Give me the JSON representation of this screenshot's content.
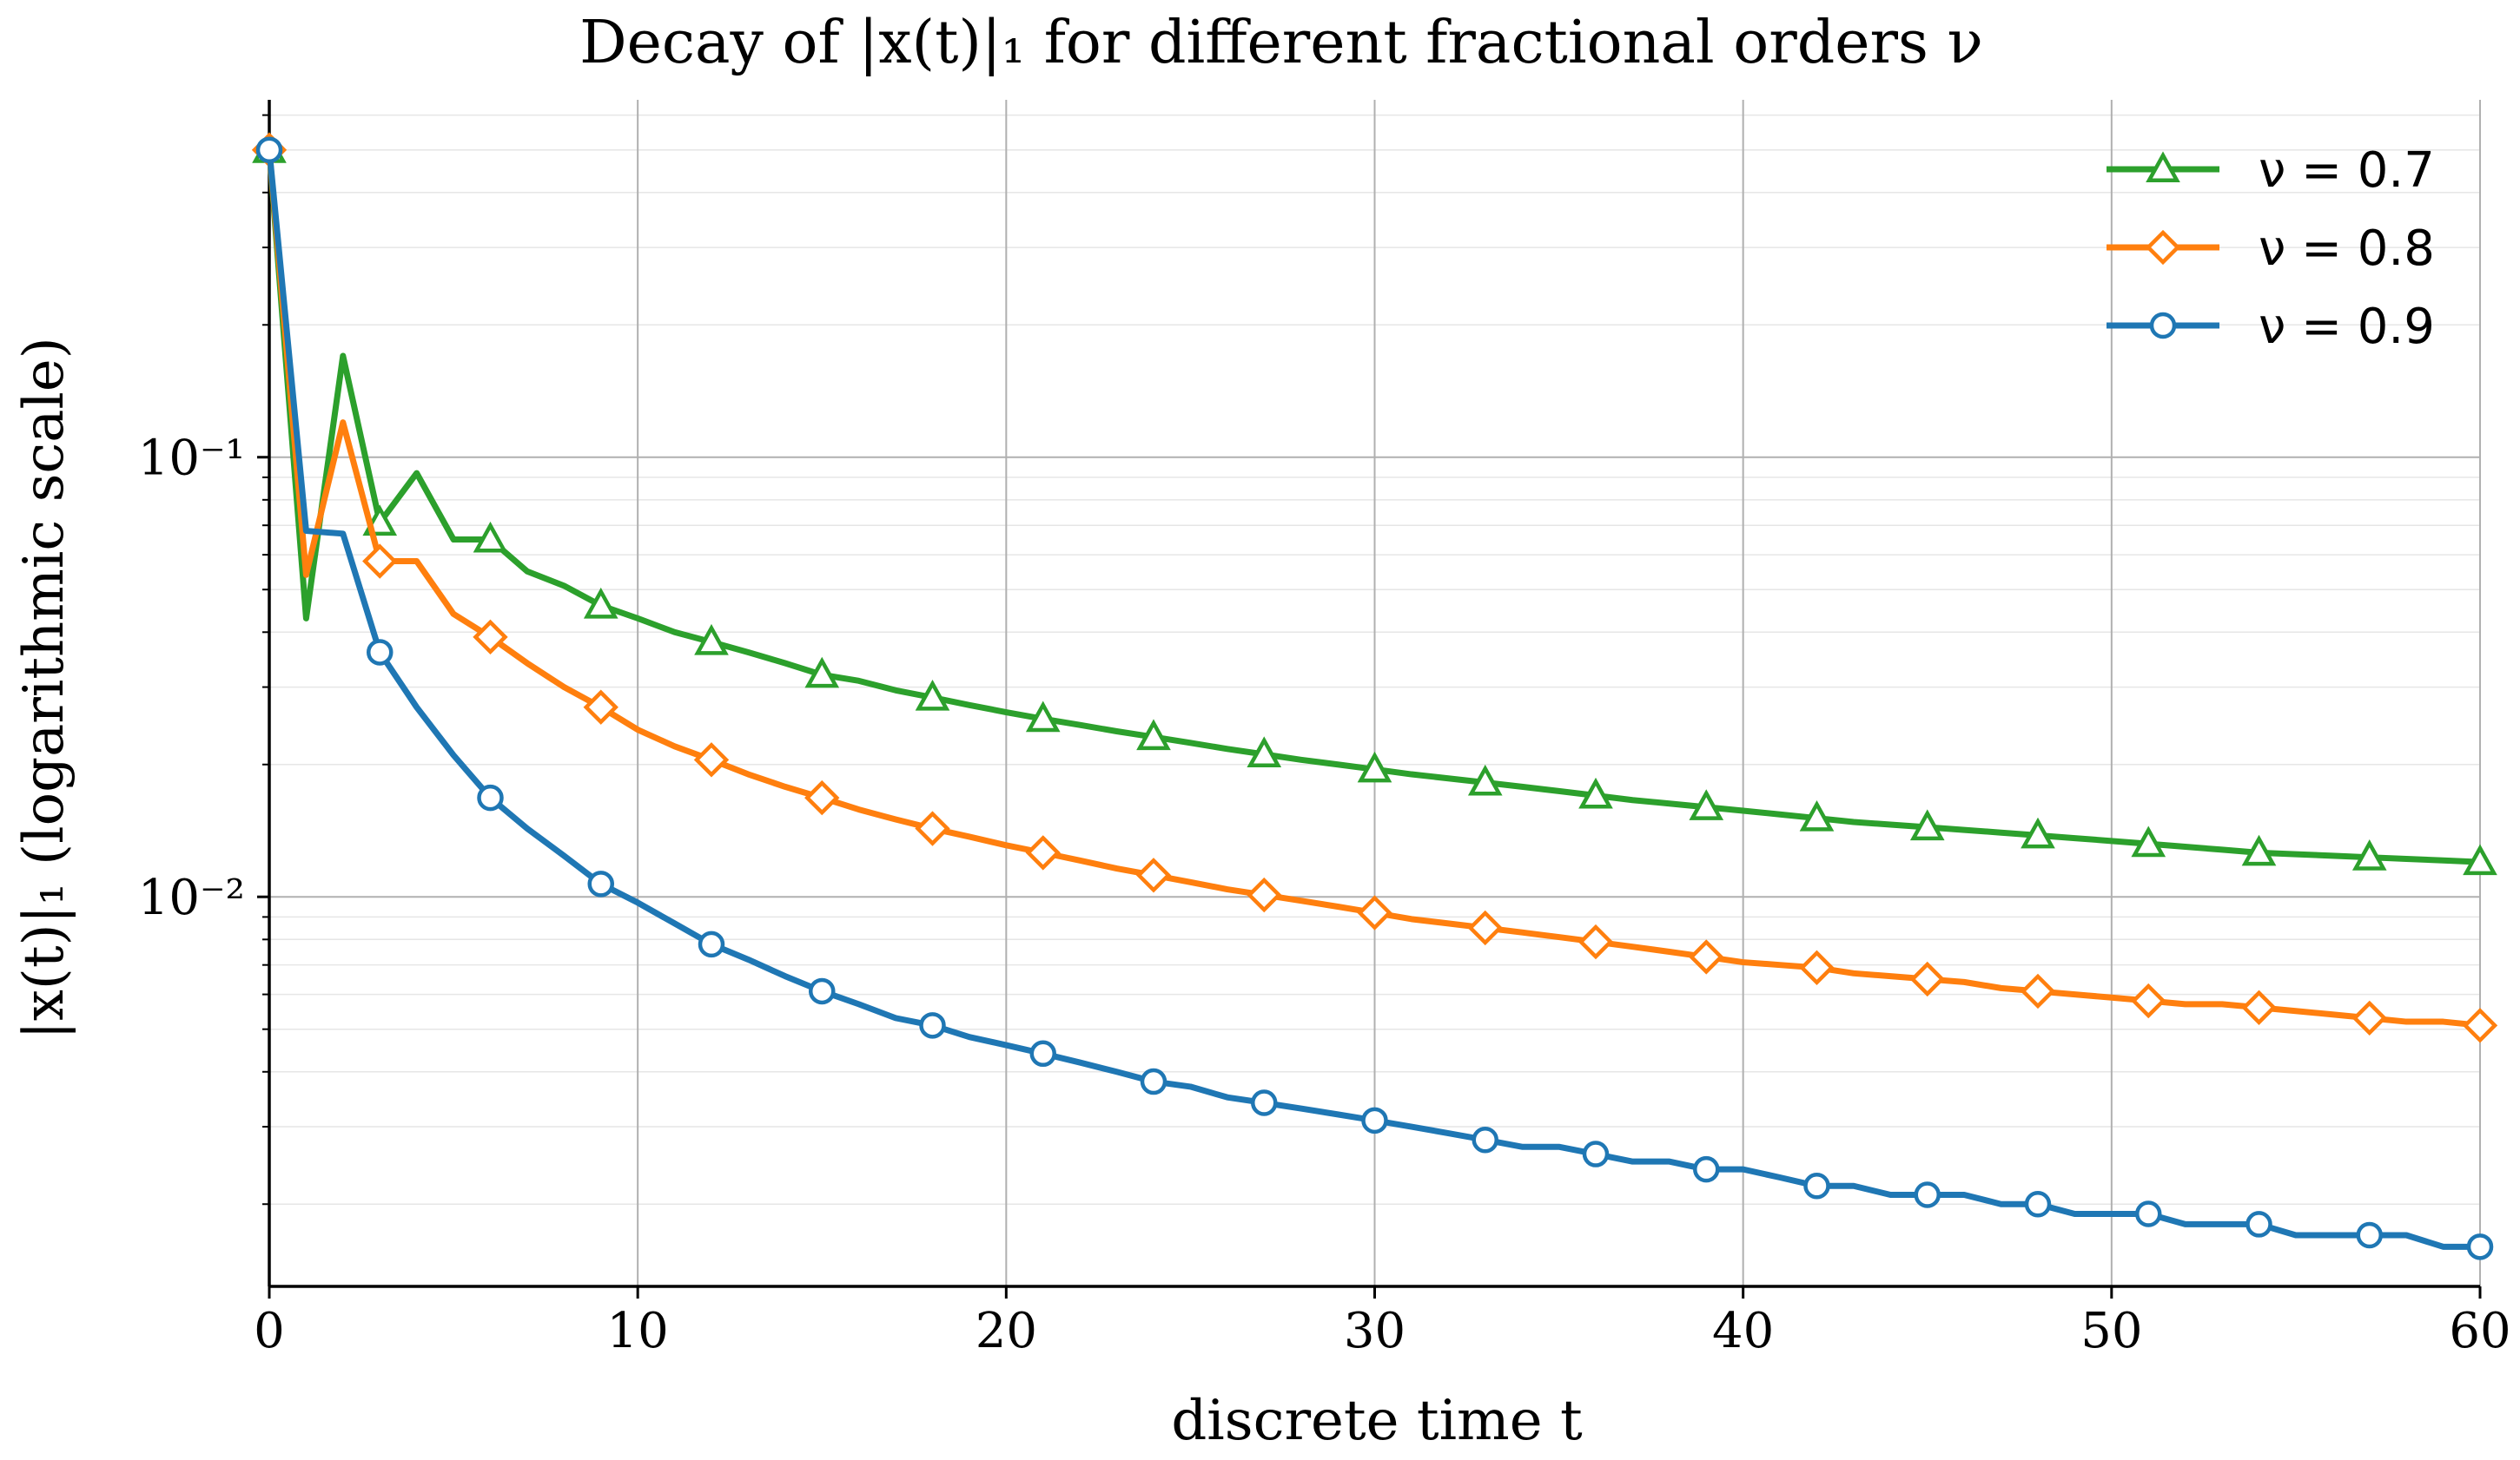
{
  "chart_data": {
    "type": "line",
    "title": "Decay of |x(t)|₁ for different fractional orders ν",
    "xlabel": "discrete time t",
    "ylabel": "|x(t)|₁ (logarithmic scale)",
    "xlim": [
      0,
      60
    ],
    "ylim": [
      0.0013,
      0.65
    ],
    "yscale": "log",
    "grid": true,
    "legend_position": "top-right",
    "x_ticks": [
      0,
      10,
      20,
      30,
      40,
      50,
      60
    ],
    "y_ticks": [
      {
        "value": 0.1,
        "label": "10⁻¹"
      },
      {
        "value": 0.01,
        "label": "10⁻²"
      }
    ],
    "x": [
      0,
      1,
      2,
      3,
      4,
      5,
      6,
      7,
      8,
      9,
      10,
      11,
      12,
      13,
      14,
      15,
      16,
      17,
      18,
      19,
      20,
      21,
      22,
      23,
      24,
      25,
      26,
      27,
      28,
      29,
      30,
      31,
      32,
      33,
      34,
      35,
      36,
      37,
      38,
      39,
      40,
      41,
      42,
      43,
      44,
      45,
      46,
      47,
      48,
      49,
      50,
      51,
      52,
      53,
      54,
      55,
      56,
      57,
      58,
      59,
      60
    ],
    "series": [
      {
        "name": "ν = 0.7",
        "color": "#2ca02c",
        "marker": "triangle",
        "values": [
          0.5,
          0.043,
          0.17,
          0.071,
          0.092,
          0.065,
          0.065,
          0.055,
          0.051,
          0.046,
          0.043,
          0.04,
          0.038,
          0.036,
          0.034,
          0.032,
          0.031,
          0.0295,
          0.0284,
          0.0273,
          0.0263,
          0.0254,
          0.0246,
          0.0238,
          0.0231,
          0.0224,
          0.0217,
          0.0211,
          0.0205,
          0.02,
          0.0195,
          0.019,
          0.0186,
          0.0182,
          0.0178,
          0.0174,
          0.017,
          0.0166,
          0.0163,
          0.016,
          0.0157,
          0.0154,
          0.0151,
          0.0148,
          0.0146,
          0.0144,
          0.0142,
          0.014,
          0.0138,
          0.0136,
          0.0134,
          0.0132,
          0.013,
          0.0128,
          0.0126,
          0.0125,
          0.0124,
          0.0123,
          0.0122,
          0.0121,
          0.012
        ]
      },
      {
        "name": "ν = 0.8",
        "color": "#ff7f0e",
        "marker": "diamond",
        "values": [
          0.5,
          0.054,
          0.12,
          0.058,
          0.058,
          0.044,
          0.039,
          0.034,
          0.03,
          0.027,
          0.024,
          0.022,
          0.0205,
          0.019,
          0.0178,
          0.0168,
          0.0158,
          0.015,
          0.0143,
          0.0137,
          0.0131,
          0.0126,
          0.0121,
          0.0116,
          0.0112,
          0.0108,
          0.0104,
          0.0101,
          0.0098,
          0.0095,
          0.0092,
          0.0089,
          0.0087,
          0.0085,
          0.0083,
          0.0081,
          0.0079,
          0.0077,
          0.0075,
          0.0073,
          0.0071,
          0.007,
          0.0069,
          0.0067,
          0.0066,
          0.0065,
          0.0064,
          0.0062,
          0.0061,
          0.006,
          0.0059,
          0.0058,
          0.0057,
          0.0057,
          0.0056,
          0.0055,
          0.0054,
          0.0053,
          0.0052,
          0.0052,
          0.0051
        ]
      },
      {
        "name": "ν = 0.9",
        "color": "#1f77b4",
        "marker": "circle",
        "values": [
          0.5,
          0.068,
          0.067,
          0.036,
          0.027,
          0.021,
          0.0168,
          0.0143,
          0.0124,
          0.0107,
          0.0097,
          0.0087,
          0.0078,
          0.0072,
          0.0066,
          0.0061,
          0.0057,
          0.0053,
          0.0051,
          0.0048,
          0.0046,
          0.0044,
          0.0042,
          0.004,
          0.0038,
          0.0037,
          0.0035,
          0.0034,
          0.0033,
          0.0032,
          0.0031,
          0.003,
          0.0029,
          0.0028,
          0.0027,
          0.0027,
          0.0026,
          0.0025,
          0.0025,
          0.0024,
          0.0024,
          0.0023,
          0.0022,
          0.0022,
          0.0021,
          0.0021,
          0.0021,
          0.002,
          0.002,
          0.0019,
          0.0019,
          0.0019,
          0.0018,
          0.0018,
          0.0018,
          0.0017,
          0.0017,
          0.0017,
          0.0017,
          0.0016,
          0.0016
        ]
      }
    ],
    "marker_every": 3,
    "legend_order": [
      0,
      1,
      2
    ]
  }
}
